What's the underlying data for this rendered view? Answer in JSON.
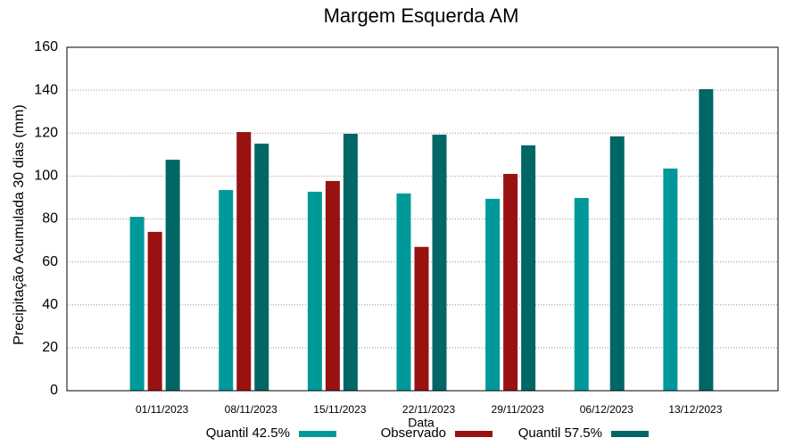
{
  "chart_data": {
    "type": "bar",
    "title": "Margem Esquerda AM",
    "x_label": "Data",
    "y_label": "Precipitação Acumulada 30 dias (mm)",
    "categories": [
      "01/11/2023",
      "08/11/2023",
      "15/11/2023",
      "22/11/2023",
      "29/11/2023",
      "06/12/2023",
      "13/12/2023"
    ],
    "series": [
      {
        "name": "Quantil 42.5%",
        "color": "#009999",
        "values": [
          81,
          93.5,
          92.7,
          91.9,
          89.4,
          89.8,
          103.5
        ]
      },
      {
        "name": "Observado",
        "color": "#991111",
        "values": [
          74,
          120.5,
          97.7,
          67,
          101,
          null,
          null
        ]
      },
      {
        "name": "Quantil 57.5%",
        "color": "#006666",
        "values": [
          107.6,
          115.1,
          119.7,
          119.3,
          114.3,
          118.5,
          140.5
        ]
      }
    ],
    "ylim": [
      0,
      160
    ],
    "yticks": [
      0,
      20,
      40,
      60,
      80,
      100,
      120,
      140,
      160
    ],
    "grid": true,
    "legend": "bottom"
  }
}
